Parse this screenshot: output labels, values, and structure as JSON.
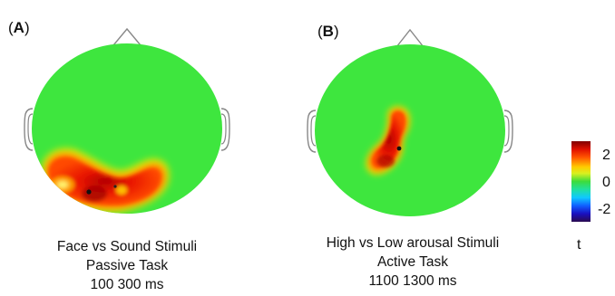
{
  "panel_a": {
    "label": "A",
    "caption": [
      "Face vs Sound Stimuli",
      "Passive Task",
      "100 300 ms"
    ]
  },
  "panel_b": {
    "label": "B",
    "caption": [
      "High vs Low arousal Stimuli",
      "Active Task",
      "1100 1300 ms"
    ]
  },
  "colorbar": {
    "ticks": [
      "2",
      "0",
      "-2"
    ],
    "unit": "t"
  },
  "colors": {
    "background_map": "#3ee63e",
    "positive_high": "#cc0000",
    "positive_mid": "#ff4a00",
    "positive_low": "#ffd000"
  }
}
